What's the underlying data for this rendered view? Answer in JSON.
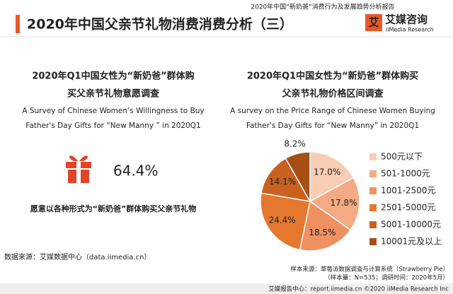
{
  "header": {
    "title": "2020年中国父亲节礼物消费消费分析（三）",
    "report_title": "2020年中国“新奶爸”消费行为及发展趋势分析报告",
    "logo_cn": "艾媒咨询",
    "logo_en": "iiMedia Research"
  },
  "left": {
    "title": [
      "2020年Q1中国女性为“新奶爸”群体购",
      "买父亲节礼物意愿调查"
    ],
    "english": [
      "A Survey of Chinese Women’s Willingness to Buy",
      "Father's Day Gifts for  “New Manny ” in 2020Q1"
    ],
    "stat": "64.4%",
    "caption": "愿意以各种形式为“新奶爸”群体购买父亲节礼物"
  },
  "chart_data": {
    "type": "pie",
    "title": [
      "2020年Q1中国女性为“新奶爸”群体购买",
      "父亲节礼物价格区间调查"
    ],
    "subtitle": [
      "A survey on the Price Range of Chinese Women Buying",
      "Father's Day Gifts for  “New Manny” in 2020Q1"
    ],
    "categories": [
      "500元以下",
      "501-1000元",
      "1001-2500元",
      "2501-5000元",
      "5001-10000元",
      "10001元及以上"
    ],
    "values": [
      17.0,
      17.8,
      18.5,
      24.4,
      14.1,
      8.2
    ],
    "value_labels": [
      "17.0%",
      "17.8%",
      "18.5%",
      "24.4%",
      "14.1%",
      "8.2%"
    ],
    "colors": [
      "#f8cdb4",
      "#f4aa84",
      "#ef9060",
      "#e5772f",
      "#c9621f",
      "#a64f14"
    ]
  },
  "footer": {
    "source": "数据来源：艾媒数据中心（data.iimedia.cn）",
    "sample_source": "样本来源：草莓派数据调查与计算系统（Strawberry Pie）",
    "sample_info": "（样本量：N=535；调研时间：2020年5月）",
    "bottom": "艾媒报告中心：report.iimedia.cn ©2020 iiMedia Research Inc"
  }
}
